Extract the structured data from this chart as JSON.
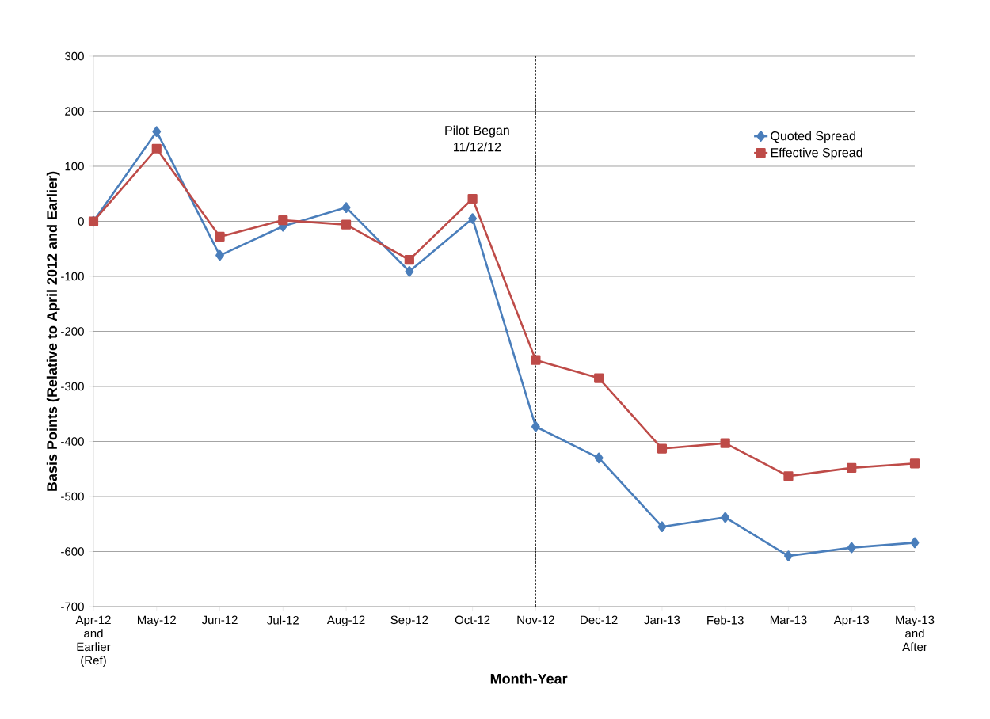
{
  "chart_data": {
    "type": "line",
    "xlabel": "Month-Year",
    "ylabel": "Basis Points  (Relative to April 2012 and Earlier)",
    "categories": [
      "Apr-12 and Earlier (Ref)",
      "May-12",
      "Jun-12",
      "Jul-12",
      "Aug-12",
      "Sep-12",
      "Oct-12",
      "Nov-12",
      "Dec-12",
      "Jan-13",
      "Feb-13",
      "Mar-13",
      "Apr-13",
      "May-13 and After"
    ],
    "series": [
      {
        "name": "Quoted Spread",
        "color": "#4a7ebb",
        "marker": "diamond",
        "values": [
          0,
          163,
          -62,
          -9,
          25,
          -91,
          5,
          -373,
          -430,
          -555,
          -538,
          -608,
          -593,
          -584
        ]
      },
      {
        "name": "Effective Spread",
        "color": "#be4b48",
        "marker": "square",
        "values": [
          0,
          132,
          -28,
          2,
          -6,
          -70,
          41,
          -252,
          -285,
          -413,
          -403,
          -463,
          -448,
          -440
        ]
      }
    ],
    "ylim": [
      -700,
      300
    ],
    "yticks": [
      -700,
      -600,
      -500,
      -400,
      -300,
      -200,
      -100,
      0,
      100,
      200,
      300
    ],
    "grid": "y",
    "legend": "top right",
    "line_style": "solid",
    "ref_lines": [
      {
        "axis": "x",
        "value": "Nov-12",
        "label": "Pilot Began 11/12/12",
        "color": "#000000",
        "line_style": "dashed"
      }
    ]
  }
}
